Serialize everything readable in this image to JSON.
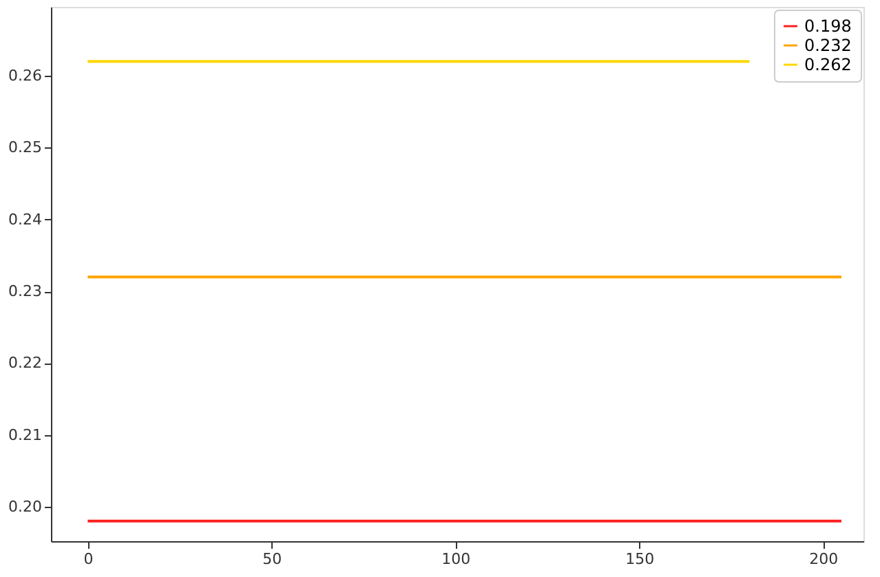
{
  "chart_data": {
    "type": "line",
    "x": [
      0,
      205
    ],
    "series": [
      {
        "name": "0.198",
        "color": "#ff2020",
        "values": [
          0.198,
          0.198
        ]
      },
      {
        "name": "0.232",
        "color": "#ffa500",
        "values": [
          0.232,
          0.232
        ]
      },
      {
        "name": "0.262",
        "color": "#ffd700",
        "x": [
          0,
          180
        ],
        "values": [
          0.262,
          0.262
        ]
      }
    ],
    "xlim": [
      -10,
      211
    ],
    "xticks": [
      0,
      50,
      100,
      150,
      200
    ],
    "ylim": [
      0.1952,
      0.2696
    ],
    "yticks": [
      {
        "value": 0.2,
        "label": "0.20"
      },
      0.21,
      0.22,
      0.23,
      0.24,
      0.25,
      0.26
    ],
    "grid": false,
    "legend": "top right",
    "marker": "none",
    "line_style": "solid"
  }
}
